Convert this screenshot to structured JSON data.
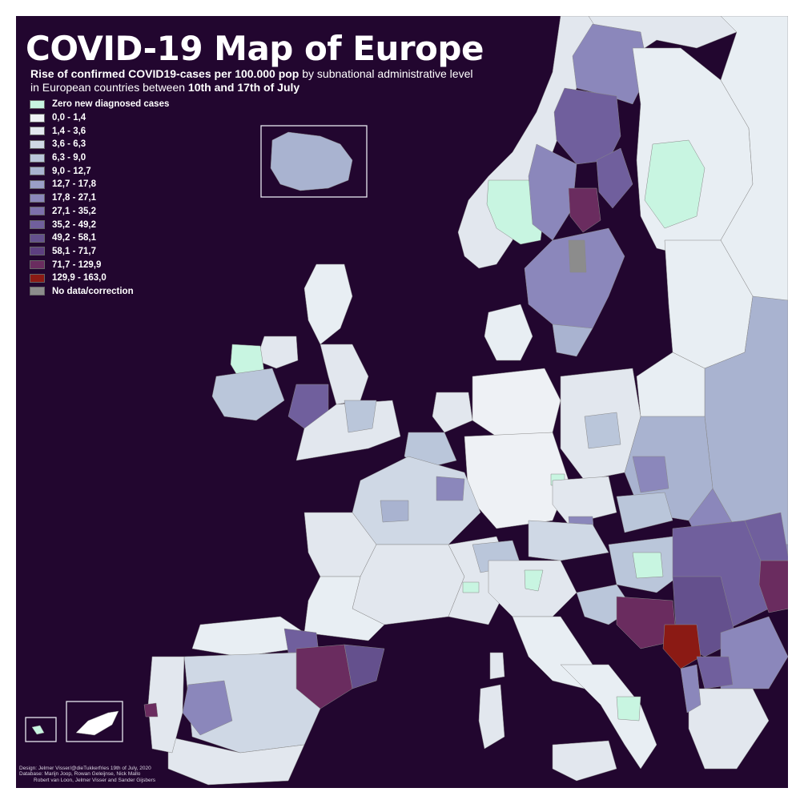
{
  "title": "COVID-19 Map of Europe",
  "subtitle": {
    "line1_bold": "Rise of confirmed COVID19-cases per 100.000 pop",
    "line1_rest": " by subnational administrative level",
    "line2_rest": "in European countries between ",
    "line2_bold": "10th and 17th of July"
  },
  "legend": [
    {
      "label": "Zero new diagnosed cases",
      "color": "#c8f5e1"
    },
    {
      "label": "0,0 - 1,4",
      "color": "#eef1f5"
    },
    {
      "label": "1,4 - 3,6",
      "color": "#e2e7ee"
    },
    {
      "label": "3,6 - 6,3",
      "color": "#cfd8e5"
    },
    {
      "label": "6,3 - 9,0",
      "color": "#bac6da"
    },
    {
      "label": "9,0 - 12,7",
      "color": "#a9b3d0"
    },
    {
      "label": "12,7 - 17,8",
      "color": "#9a9fc7"
    },
    {
      "label": "17,8 - 27,1",
      "color": "#8b87bb"
    },
    {
      "label": "27,1 - 35,2",
      "color": "#7d70ac"
    },
    {
      "label": "35,2 - 49,2",
      "color": "#705f9d"
    },
    {
      "label": "49,2 - 58,1",
      "color": "#64508d"
    },
    {
      "label": "58,1 - 71,7",
      "color": "#5d3f80"
    },
    {
      "label": "71,7 - 129,9",
      "color": "#6a2c5f"
    },
    {
      "label": "129,9 - 163,0",
      "color": "#8b1a14"
    },
    {
      "label": "No data/correction",
      "color": "#8c8c8c"
    }
  ],
  "credits": "Design: Jelmer Visser/@dieTukkerfries 19th of July, 2020\nDatabase: Marijn Joop, Rowan Geleijnse, Nick Mallo\n          Robert van Loon, Jelmer Visser and Sander Gijsbers",
  "colors": {
    "sea": "#22062f",
    "frame_background": "#ffffff",
    "land_outside_data": "#e8eef3"
  }
}
